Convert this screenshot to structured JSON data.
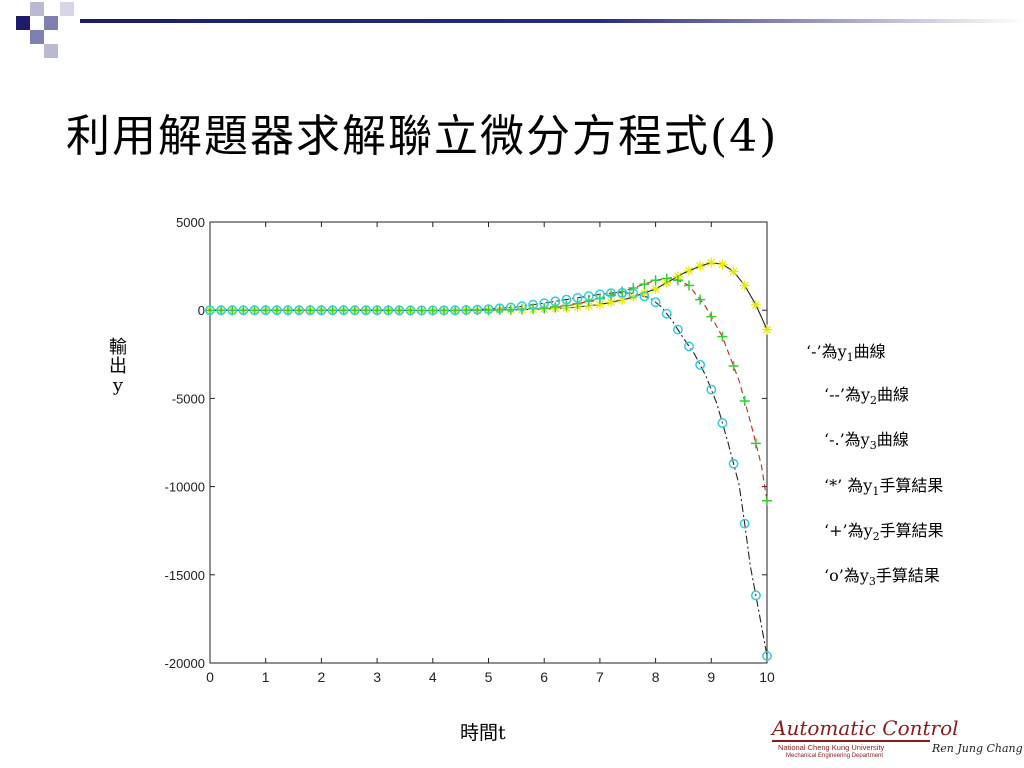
{
  "slide": {
    "title": "利用解題器求解聯立微分方程式(4)",
    "theme_colors": {
      "dark": "#1c1c6a",
      "mid": "#7f7fb2",
      "light": "#b9b9d4"
    }
  },
  "chart_data": {
    "type": "line",
    "xlabel": "時間t",
    "ylabel": "輸出y",
    "xlim": [
      0,
      10
    ],
    "ylim": [
      -20000,
      5000
    ],
    "xticks": [
      0,
      1,
      2,
      3,
      4,
      5,
      6,
      7,
      8,
      9,
      10
    ],
    "yticks": [
      5000,
      0,
      -5000,
      -10000,
      -15000,
      -20000
    ],
    "xtick_labels": [
      "0",
      "1",
      "2",
      "3",
      "4",
      "5",
      "6",
      "7",
      "8",
      "9",
      "10"
    ],
    "ytick_labels": [
      "5000",
      "0",
      "-5000",
      "-10000",
      "-15000",
      "-20000"
    ],
    "grid": false,
    "series": [
      {
        "key": "y1",
        "line": "solid",
        "line_color": "#222222",
        "marker": "*",
        "marker_color": "#e8e800",
        "x": [
          0,
          0.5,
          1,
          1.5,
          2,
          2.5,
          3,
          3.5,
          4,
          4.5,
          5,
          5.5,
          6,
          6.5,
          7,
          7.5,
          8,
          8.5,
          8.8,
          9,
          9.2,
          9.4,
          9.6,
          9.8,
          10
        ],
        "y": [
          0,
          0,
          0,
          0,
          0,
          0,
          0,
          -10,
          -20,
          -10,
          0,
          20,
          60,
          150,
          320,
          650,
          1200,
          2100,
          2500,
          2700,
          2600,
          2200,
          1400,
          300,
          -1100
        ]
      },
      {
        "key": "y2",
        "line": "dashed",
        "line_color": "#cc2222",
        "marker": "+",
        "marker_color": "#33cc33",
        "x": [
          0,
          0.5,
          1,
          1.5,
          2,
          2.5,
          3,
          3.5,
          4,
          4.5,
          5,
          5.5,
          6,
          6.5,
          7,
          7.5,
          8,
          8.3,
          8.6,
          8.9,
          9.2,
          9.5,
          9.7,
          9.9,
          10
        ],
        "y": [
          0,
          0,
          0,
          0,
          0,
          0,
          0,
          -10,
          -20,
          -10,
          10,
          40,
          120,
          300,
          650,
          1150,
          1700,
          1850,
          1400,
          200,
          -1500,
          -4000,
          -6300,
          -8800,
          -10800
        ]
      },
      {
        "key": "y3",
        "line": "dashdot",
        "line_color": "#222222",
        "marker": "o",
        "marker_color": "#33ccdd",
        "x": [
          0,
          0.5,
          1,
          1.5,
          2,
          2.5,
          3,
          3.5,
          4,
          4.5,
          5,
          5.5,
          6,
          6.5,
          7,
          7.3,
          7.6,
          7.9,
          8.1,
          8.3,
          8.5,
          8.7,
          8.9,
          9.1,
          9.3,
          9.5,
          9.6,
          9.7,
          9.85,
          10
        ],
        "y": [
          0,
          0,
          0,
          0,
          0,
          0,
          0,
          -10,
          -10,
          0,
          60,
          180,
          400,
          650,
          900,
          1000,
          950,
          700,
          200,
          -600,
          -1600,
          -2500,
          -3700,
          -5300,
          -7500,
          -9900,
          -12100,
          -14500,
          -17000,
          -19600
        ]
      }
    ]
  },
  "legend": {
    "items": [
      {
        "pre": "‘-’為",
        "var": "y",
        "sub": "1",
        "post": "曲線"
      },
      {
        "pre": "‘--’為",
        "var": "y",
        "sub": "2",
        "post": "曲線"
      },
      {
        "pre": "‘-.’為",
        "var": "y",
        "sub": "3",
        "post": "曲線"
      },
      {
        "pre": "‘*’  為",
        "var": "y",
        "sub": "1",
        "post": "手算結果"
      },
      {
        "pre": "‘+’為",
        "var": "y",
        "sub": "2",
        "post": "手算結果"
      },
      {
        "pre": "‘o’為",
        "var": "y",
        "sub": "3",
        "post": "手算結果"
      }
    ]
  },
  "logo": {
    "main": "Automatic Control",
    "university": "National Cheng Kung University",
    "department": "Mechanical Engineering Department",
    "author": "Ren Jung Chang"
  }
}
